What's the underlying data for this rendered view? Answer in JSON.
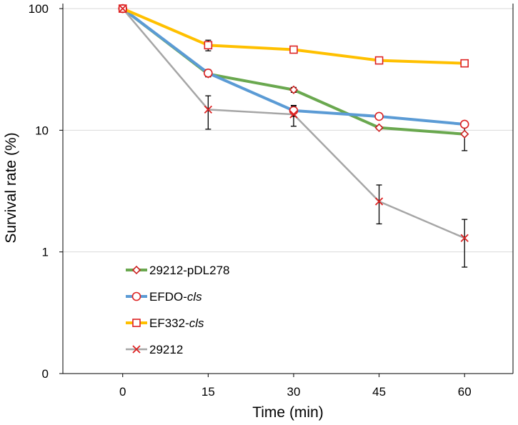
{
  "chart_data": {
    "type": "line",
    "title": "",
    "xlabel": "Time (min)",
    "ylabel": "Survival rate (%)",
    "yscale": "log",
    "x": [
      0,
      15,
      30,
      45,
      60
    ],
    "xticks": [
      "0",
      "15",
      "30",
      "45",
      "60"
    ],
    "yticks": [
      {
        "value": 100,
        "label": "100"
      },
      {
        "value": 10,
        "label": "10"
      },
      {
        "value": 1,
        "label": "1"
      }
    ],
    "ybottom_label": "0",
    "xlim": [
      -10.5,
      68.5
    ],
    "ylim": [
      0.1,
      110
    ],
    "grid": true,
    "legend_position": "lower-left",
    "series": [
      {
        "name": "29212-pDL278",
        "name_main": "29212-pDL278",
        "name_italic": "",
        "line_color": "#6aa84f",
        "marker": "diamond",
        "marker_color": "#cc2222",
        "values": [
          100,
          29,
          21.5,
          10.5,
          9.3
        ],
        "errors": [
          null,
          1.5,
          1,
          0.3,
          [
            2.5,
            1.3
          ]
        ]
      },
      {
        "name": "EFDO-cls",
        "name_main": "EFDO-",
        "name_italic": "cls",
        "line_color": "#5b9bd5",
        "marker": "circle",
        "marker_color": "#dd2222",
        "values": [
          100,
          29.5,
          14.5,
          13,
          11.2
        ],
        "errors": [
          null,
          2,
          1.5,
          0.5,
          0.5
        ]
      },
      {
        "name": "EF332-cls",
        "name_main": "EF332-",
        "name_italic": "cls",
        "line_color": "#ffc000",
        "marker": "square",
        "marker_color": "#dd2222",
        "values": [
          100,
          50,
          46,
          37.5,
          35.5
        ],
        "errors": [
          null,
          5,
          2,
          1,
          1.5
        ]
      },
      {
        "name": "29212",
        "name_main": "29212",
        "name_italic": "",
        "line_color": "#a6a6a6",
        "marker": "cross",
        "marker_color": "#dd2222",
        "values": [
          100,
          14.8,
          13.5,
          2.6,
          1.3
        ],
        "errors": [
          null,
          [
            4.6,
            4.4
          ],
          [
            2.7,
            2.3
          ],
          [
            0.9,
            0.95
          ],
          [
            0.55,
            0.55
          ]
        ]
      }
    ]
  }
}
